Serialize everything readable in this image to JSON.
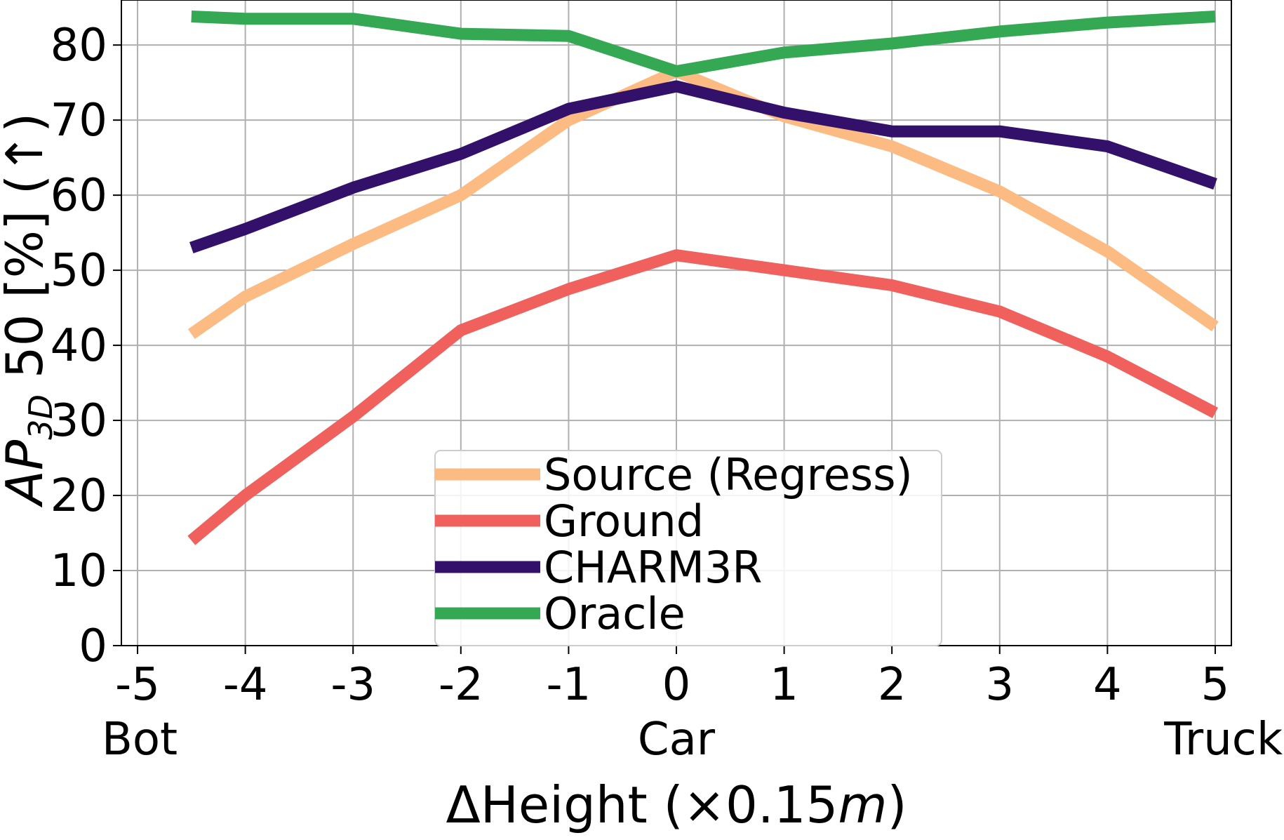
{
  "chart_data": {
    "type": "line",
    "x": [
      -4.5,
      -4,
      -3,
      -2,
      -1,
      0,
      1,
      2,
      3,
      4,
      5
    ],
    "series": [
      {
        "name": "Source (Regress)",
        "color": "#FDBB84",
        "values": [
          41.5,
          46.5,
          53.5,
          60.0,
          70.0,
          76.5,
          70.5,
          66.5,
          60.5,
          52.5,
          42.5
        ]
      },
      {
        "name": "Ground",
        "color": "#F0605D",
        "values": [
          14.0,
          20.0,
          30.5,
          42.0,
          47.5,
          52.0,
          50.0,
          48.0,
          44.5,
          38.5,
          31.0
        ]
      },
      {
        "name": "CHARM3R",
        "color": "#33106A",
        "values": [
          53.0,
          55.5,
          61.0,
          65.5,
          71.5,
          74.5,
          71.0,
          68.5,
          68.5,
          66.5,
          61.5
        ]
      },
      {
        "name": "Oracle",
        "color": "#34A853",
        "values": [
          83.8,
          83.5,
          83.5,
          81.5,
          81.2,
          76.5,
          79.0,
          80.2,
          81.8,
          83.0,
          83.8
        ]
      }
    ],
    "xticks": [
      -5,
      -4,
      -3,
      -2,
      -1,
      0,
      1,
      2,
      3,
      4,
      5
    ],
    "xtick_labels": [
      "-5",
      "-4",
      "-3",
      "-2",
      "-1",
      "0",
      "1",
      "2",
      "3",
      "4",
      "5"
    ],
    "yticks": [
      0,
      10,
      20,
      30,
      40,
      50,
      60,
      70,
      80
    ],
    "ytick_labels": [
      "0",
      "10",
      "20",
      "30",
      "40",
      "50",
      "60",
      "70",
      "80"
    ],
    "category_labels": [
      {
        "x": -5,
        "text": "Bot"
      },
      {
        "x": 0,
        "text": "Car"
      },
      {
        "x": 5,
        "text": "Truck"
      }
    ],
    "xlabel": "ΔHeight (×0.15m)",
    "ylabel": "AP3D 50 [%] (↑)",
    "xlim": [
      -5.15,
      5.15
    ],
    "ylim": [
      0,
      86
    ],
    "grid": true,
    "legend_position": "bottom-center"
  }
}
